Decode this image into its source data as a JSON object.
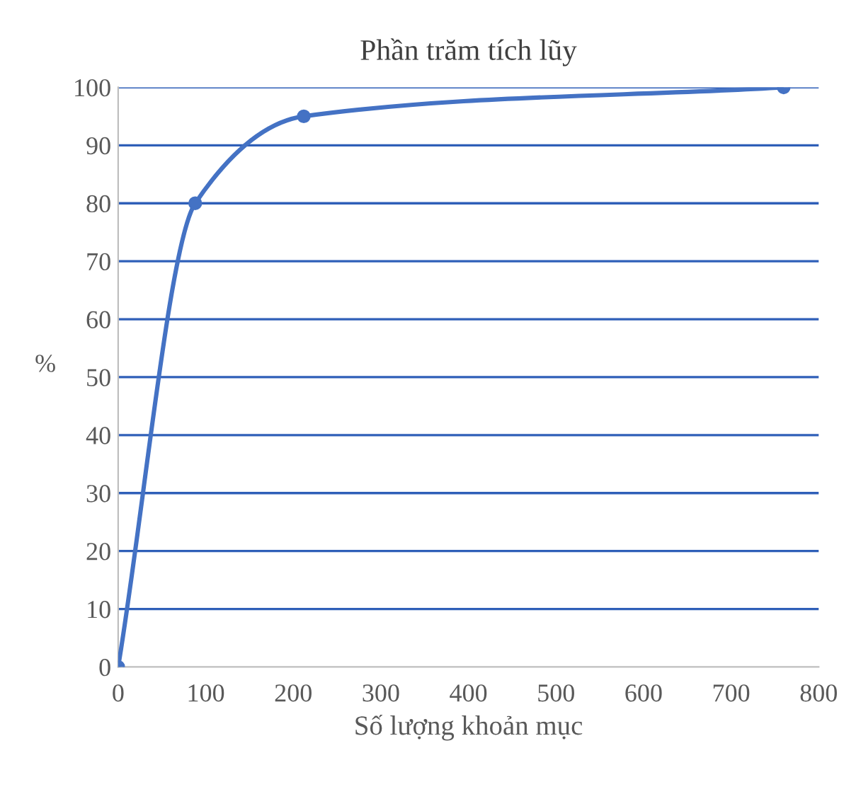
{
  "chart_data": {
    "type": "line",
    "title": "Phần trăm tích lũy",
    "xlabel": "Số lượng khoản mục",
    "ylabel": "%",
    "x": [
      0,
      88,
      212,
      760
    ],
    "series": [
      {
        "color": "#4472c4",
        "values": [
          0,
          80,
          95,
          100
        ]
      }
    ],
    "xlim": [
      0,
      800
    ],
    "xticks": [
      0,
      100,
      200,
      300,
      400,
      500,
      600,
      700,
      800
    ],
    "ylim": [
      0,
      100
    ],
    "yticks": [
      0,
      10,
      20,
      30,
      40,
      50,
      60,
      70,
      80,
      90,
      100
    ],
    "grid": "y",
    "marker": "circle",
    "line_style": "solid"
  }
}
